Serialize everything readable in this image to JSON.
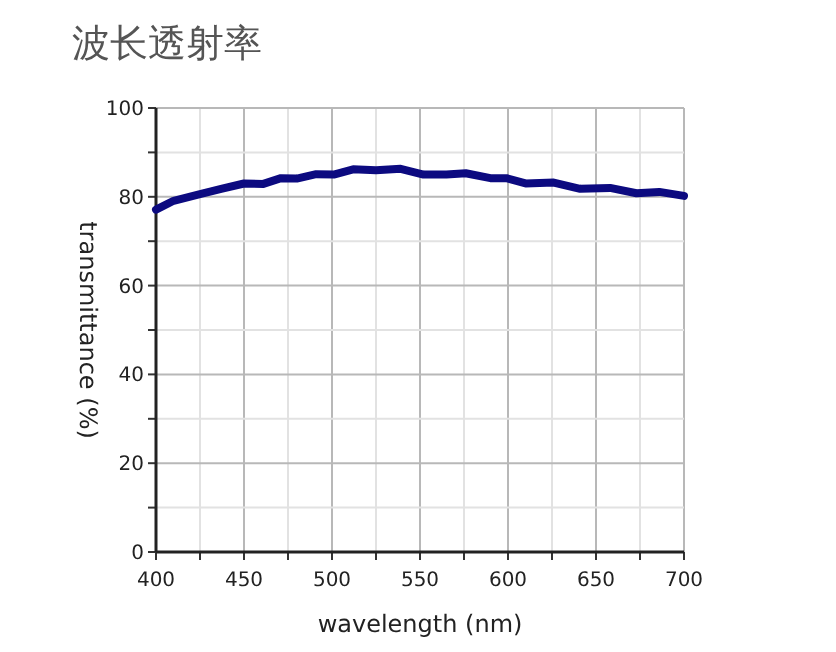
{
  "chart_data": {
    "type": "line",
    "title": "波长透射率",
    "xlabel": "wavelength (nm)",
    "ylabel": "transmittance (%)",
    "x": [
      400,
      410,
      425,
      437,
      450,
      461,
      471,
      480,
      491,
      501,
      512,
      525,
      539,
      552,
      565,
      576,
      590,
      599,
      610,
      626,
      641,
      658,
      673,
      686,
      700
    ],
    "series": [
      {
        "color": "#0c0a80",
        "values": [
          77.1,
          79.1,
          80.6,
          81.8,
          83,
          82.9,
          84.2,
          84.1,
          85.1,
          85,
          86.2,
          86,
          86.3,
          85,
          85,
          85.3,
          84.2,
          84.2,
          83,
          83.2,
          81.8,
          82,
          80.8,
          81.1,
          80.2
        ]
      }
    ],
    "xlim": [
      400,
      700
    ],
    "ylim": [
      0,
      100
    ],
    "xticks": [
      400,
      {
        "value": 425,
        "label": null
      },
      450,
      {
        "value": 475,
        "label": null
      },
      500,
      {
        "value": 525,
        "label": null
      },
      550,
      {
        "value": 575,
        "label": null
      },
      600,
      {
        "value": 625,
        "label": null
      },
      650,
      {
        "value": 675,
        "label": null
      },
      700
    ],
    "yticks": [
      0,
      {
        "value": 10,
        "label": null
      },
      20,
      {
        "value": 30,
        "label": null
      },
      40,
      {
        "value": 50,
        "label": null
      },
      60,
      {
        "value": 70,
        "label": null
      },
      80,
      {
        "value": 90,
        "label": null
      },
      100
    ],
    "grid": true
  }
}
